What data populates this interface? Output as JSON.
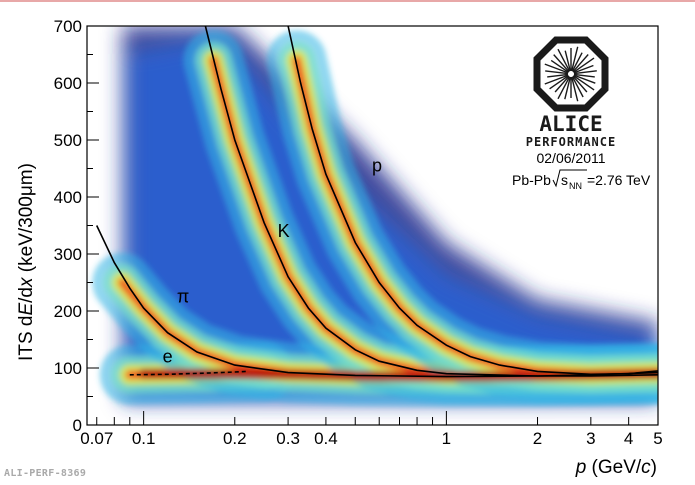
{
  "chart_data": {
    "type": "heatmap",
    "title": "",
    "xlabel_parts": [
      "p",
      " (GeV/",
      "c",
      ")"
    ],
    "ylabel_parts": [
      "ITS d",
      "E",
      "/d",
      "x",
      " (keV/300",
      "μ",
      "m)"
    ],
    "x_scale": "log",
    "xlim": [
      0.065,
      5.0
    ],
    "ylim": [
      0,
      700
    ],
    "x_ticks": [
      {
        "value": 0.07,
        "label": "0.07"
      },
      {
        "value": 0.1,
        "label": "0.1"
      },
      {
        "value": 0.2,
        "label": "0.2"
      },
      {
        "value": 0.3,
        "label": "0.3"
      },
      {
        "value": 0.4,
        "label": "0.4"
      },
      {
        "value": 1,
        "label": "1"
      },
      {
        "value": 2,
        "label": "2"
      },
      {
        "value": 3,
        "label": "3"
      },
      {
        "value": 4,
        "label": "4"
      },
      {
        "value": 5,
        "label": "5"
      }
    ],
    "y_ticks": [
      {
        "value": 0,
        "label": "0"
      },
      {
        "value": 100,
        "label": "100"
      },
      {
        "value": 200,
        "label": "200"
      },
      {
        "value": 300,
        "label": "300"
      },
      {
        "value": 400,
        "label": "400"
      },
      {
        "value": 500,
        "label": "500"
      },
      {
        "value": 600,
        "label": "600"
      },
      {
        "value": 700,
        "label": "700"
      }
    ],
    "colormap": [
      "#ffffff",
      "#1f2a8c",
      "#2a63d6",
      "#33b7e6",
      "#7fe3c8",
      "#d8ec5a",
      "#f9b22a",
      "#e8381e",
      "#b00000"
    ],
    "series": [
      {
        "name": "e",
        "label": "e",
        "style": "dashed",
        "points": [
          [
            0.09,
            88
          ],
          [
            0.12,
            89
          ],
          [
            0.16,
            91
          ],
          [
            0.2,
            93
          ],
          [
            0.22,
            94
          ]
        ],
        "label_at": [
          0.12,
          110
        ]
      },
      {
        "name": "pi",
        "label": "π",
        "style": "solid",
        "points": [
          [
            0.07,
            350
          ],
          [
            0.08,
            285
          ],
          [
            0.09,
            240
          ],
          [
            0.1,
            205
          ],
          [
            0.12,
            162
          ],
          [
            0.15,
            128
          ],
          [
            0.2,
            105
          ],
          [
            0.3,
            92
          ],
          [
            0.5,
            87
          ],
          [
            1,
            85
          ],
          [
            2,
            86
          ],
          [
            3,
            88
          ],
          [
            5,
            92
          ]
        ],
        "label_at": [
          0.135,
          215
        ]
      },
      {
        "name": "K",
        "label": "K",
        "style": "solid",
        "points": [
          [
            0.16,
            700
          ],
          [
            0.18,
            590
          ],
          [
            0.2,
            500
          ],
          [
            0.25,
            355
          ],
          [
            0.3,
            260
          ],
          [
            0.35,
            205
          ],
          [
            0.4,
            170
          ],
          [
            0.5,
            132
          ],
          [
            0.6,
            112
          ],
          [
            0.8,
            96
          ],
          [
            1,
            90
          ],
          [
            2,
            86
          ],
          [
            3,
            86
          ],
          [
            5,
            88
          ]
        ],
        "label_at": [
          0.29,
          330
        ]
      },
      {
        "name": "p",
        "label": "p",
        "style": "solid",
        "points": [
          [
            0.3,
            700
          ],
          [
            0.33,
            600
          ],
          [
            0.36,
            520
          ],
          [
            0.4,
            440
          ],
          [
            0.5,
            320
          ],
          [
            0.6,
            250
          ],
          [
            0.7,
            205
          ],
          [
            0.8,
            175
          ],
          [
            1,
            140
          ],
          [
            1.2,
            120
          ],
          [
            1.5,
            105
          ],
          [
            2,
            94
          ],
          [
            3,
            89
          ],
          [
            4,
            90
          ],
          [
            5,
            95
          ]
        ],
        "label_at": [
          0.59,
          445
        ]
      }
    ],
    "bands": [
      {
        "name": "e-band",
        "points": [
          [
            0.09,
            88
          ],
          [
            0.15,
            90
          ],
          [
            0.25,
            93
          ]
        ]
      },
      {
        "name": "pi-band",
        "points": [
          [
            0.085,
            250
          ],
          [
            0.1,
            205
          ],
          [
            0.12,
            162
          ],
          [
            0.15,
            128
          ],
          [
            0.2,
            105
          ],
          [
            0.3,
            92
          ],
          [
            0.5,
            87
          ],
          [
            1,
            85
          ],
          [
            2,
            86
          ],
          [
            5,
            90
          ]
        ]
      },
      {
        "name": "K-band",
        "points": [
          [
            0.17,
            640
          ],
          [
            0.2,
            500
          ],
          [
            0.25,
            355
          ],
          [
            0.3,
            260
          ],
          [
            0.35,
            205
          ],
          [
            0.4,
            170
          ],
          [
            0.5,
            132
          ],
          [
            0.6,
            112
          ],
          [
            0.8,
            96
          ],
          [
            1,
            90
          ],
          [
            2,
            86
          ],
          [
            5,
            88
          ]
        ]
      },
      {
        "name": "p-band",
        "points": [
          [
            0.32,
            640
          ],
          [
            0.36,
            520
          ],
          [
            0.4,
            440
          ],
          [
            0.5,
            320
          ],
          [
            0.6,
            250
          ],
          [
            0.7,
            205
          ],
          [
            0.8,
            175
          ],
          [
            1,
            140
          ],
          [
            1.2,
            120
          ],
          [
            1.5,
            105
          ],
          [
            2,
            94
          ],
          [
            3,
            89
          ],
          [
            5,
            92
          ]
        ]
      }
    ]
  },
  "logo": {
    "name": "ALICE",
    "subtitle": "PERFORMANCE",
    "date": "02/06/2011",
    "system": "Pb-Pb",
    "energy_symbol": "s",
    "energy_subscript": "NN",
    "energy_value": "=2.76 TeV"
  },
  "footer": {
    "id": "ALI-PERF-8369"
  }
}
